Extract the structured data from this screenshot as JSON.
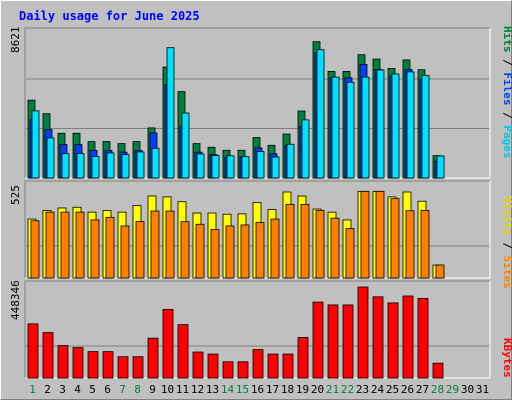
{
  "title": "Daily usage for June 2025",
  "colors": {
    "background": "#c0c0c0",
    "title_text": "#0000ff",
    "hits": "#008040",
    "files": "#0040ff",
    "pages": "#00e0ff",
    "visits": "#ffff00",
    "sites": "#ff8000",
    "kbytes": "#ff0000",
    "weekend_label": "#008040",
    "weekday_label": "#000000",
    "grid": "#808080"
  },
  "chart_data": [
    {
      "type": "bar",
      "panel": "hits-files-pages",
      "max_label": "8621",
      "legend": [
        "Pages",
        "Files",
        "Hits"
      ],
      "ylim": [
        0,
        8621
      ],
      "categories": [
        "1",
        "2",
        "3",
        "4",
        "5",
        "6",
        "7",
        "8",
        "9",
        "10",
        "11",
        "12",
        "13",
        "14",
        "15",
        "16",
        "17",
        "18",
        "19",
        "20",
        "21",
        "22",
        "23",
        "24",
        "25",
        "26",
        "27",
        "28",
        "29",
        "30",
        "31"
      ],
      "series": [
        {
          "name": "Hits",
          "values": [
            4660,
            3850,
            2680,
            2680,
            2180,
            2180,
            2060,
            2180,
            3000,
            6640,
            5170,
            2060,
            1840,
            1660,
            1660,
            2420,
            1960,
            2630,
            4010,
            8160,
            6380,
            6380,
            7380,
            7120,
            6560,
            7070,
            6480,
            1340,
            0,
            0,
            0
          ]
        },
        {
          "name": "Files",
          "values": [
            3500,
            2900,
            2000,
            2000,
            1650,
            1650,
            1550,
            1650,
            2700,
            5600,
            3100,
            1550,
            1400,
            1250,
            1250,
            1800,
            1450,
            1950,
            3100,
            7500,
            6000,
            6000,
            6800,
            6500,
            6100,
            6500,
            5900,
            1000,
            0,
            0,
            0
          ]
        },
        {
          "name": "Pages",
          "values": [
            4020,
            2400,
            1460,
            1460,
            1280,
            1500,
            1400,
            1560,
            1780,
            7800,
            3890,
            1440,
            1350,
            1330,
            1280,
            1590,
            1260,
            2020,
            3480,
            7680,
            6040,
            5730,
            6040,
            6470,
            6230,
            6350,
            6140,
            1320,
            0,
            0,
            0
          ]
        }
      ]
    },
    {
      "type": "bar",
      "panel": "visits-sites",
      "max_label": "525",
      "legend": [
        "Sites",
        "Visits"
      ],
      "ylim": [
        0,
        525
      ],
      "categories": [
        "1",
        "2",
        "3",
        "4",
        "5",
        "6",
        "7",
        "8",
        "9",
        "10",
        "11",
        "12",
        "13",
        "14",
        "15",
        "16",
        "17",
        "18",
        "19",
        "20",
        "21",
        "22",
        "23",
        "24",
        "25",
        "26",
        "27",
        "28",
        "29",
        "30",
        "31"
      ],
      "series": [
        {
          "name": "Visits",
          "values": [
            340,
            390,
            404,
            408,
            380,
            390,
            380,
            418,
            473,
            468,
            440,
            375,
            375,
            368,
            370,
            436,
            395,
            496,
            473,
            398,
            380,
            335,
            500,
            500,
            468,
            496,
            443,
            75,
            0,
            0,
            0
          ]
        },
        {
          "name": "Sites",
          "values": [
            330,
            380,
            380,
            380,
            335,
            350,
            300,
            326,
            386,
            386,
            325,
            310,
            280,
            300,
            306,
            320,
            340,
            425,
            425,
            390,
            345,
            285,
            500,
            500,
            458,
            388,
            390,
            75,
            0,
            0,
            0
          ]
        }
      ]
    },
    {
      "type": "bar",
      "panel": "kbytes",
      "max_label": "448346",
      "legend": [
        "KBytes"
      ],
      "ylim": [
        0,
        448346
      ],
      "categories": [
        "1",
        "2",
        "3",
        "4",
        "5",
        "6",
        "7",
        "8",
        "9",
        "10",
        "11",
        "12",
        "13",
        "14",
        "15",
        "16",
        "17",
        "18",
        "19",
        "20",
        "21",
        "22",
        "23",
        "24",
        "25",
        "26",
        "27",
        "28",
        "29",
        "30",
        "31"
      ],
      "series": [
        {
          "name": "KBytes",
          "values": [
            267000,
            224000,
            160000,
            150000,
            130000,
            130000,
            105000,
            105000,
            196000,
            338000,
            263000,
            128000,
            118000,
            80000,
            80000,
            140000,
            118000,
            118000,
            200000,
            374000,
            360000,
            360000,
            448346,
            400000,
            370000,
            404000,
            392000,
            73000,
            0,
            0,
            0
          ]
        }
      ]
    }
  ],
  "x_labels": [
    {
      "text": "1",
      "weekend": true
    },
    {
      "text": "2",
      "weekend": false
    },
    {
      "text": "3",
      "weekend": false
    },
    {
      "text": "4",
      "weekend": false
    },
    {
      "text": "5",
      "weekend": false
    },
    {
      "text": "6",
      "weekend": false
    },
    {
      "text": "7",
      "weekend": true
    },
    {
      "text": "8",
      "weekend": true
    },
    {
      "text": "9",
      "weekend": false
    },
    {
      "text": "10",
      "weekend": false
    },
    {
      "text": "11",
      "weekend": false
    },
    {
      "text": "12",
      "weekend": false
    },
    {
      "text": "13",
      "weekend": false
    },
    {
      "text": "14",
      "weekend": true
    },
    {
      "text": "15",
      "weekend": true
    },
    {
      "text": "16",
      "weekend": false
    },
    {
      "text": "17",
      "weekend": false
    },
    {
      "text": "18",
      "weekend": false
    },
    {
      "text": "19",
      "weekend": false
    },
    {
      "text": "20",
      "weekend": false
    },
    {
      "text": "21",
      "weekend": true
    },
    {
      "text": "22",
      "weekend": true
    },
    {
      "text": "23",
      "weekend": false
    },
    {
      "text": "24",
      "weekend": false
    },
    {
      "text": "25",
      "weekend": false
    },
    {
      "text": "26",
      "weekend": false
    },
    {
      "text": "27",
      "weekend": false
    },
    {
      "text": "28",
      "weekend": true
    },
    {
      "text": "29",
      "weekend": true
    },
    {
      "text": "30",
      "weekend": false
    },
    {
      "text": "31",
      "weekend": false
    }
  ]
}
